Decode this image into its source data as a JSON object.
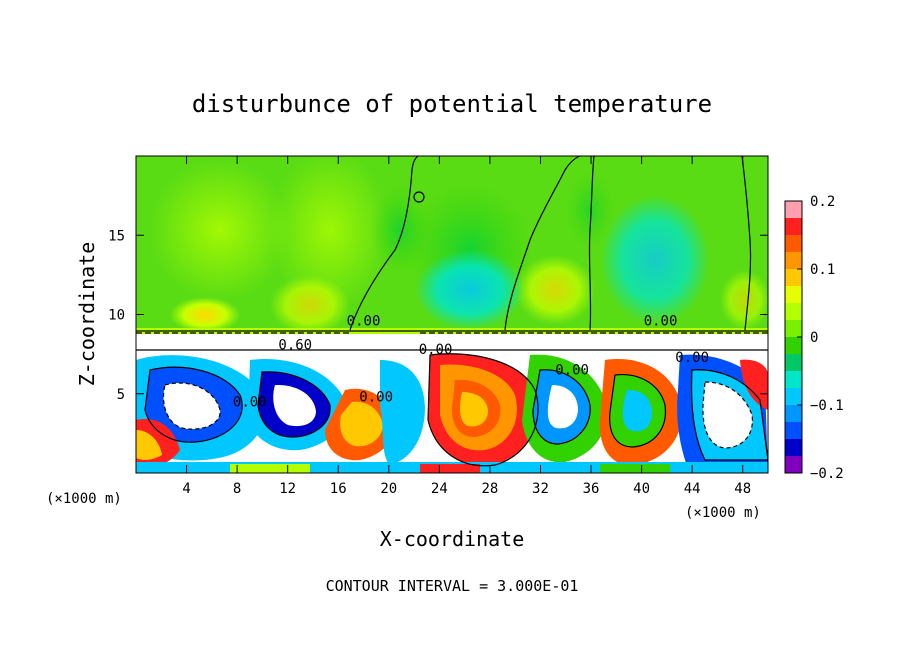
{
  "chart_data": {
    "type": "heatmap",
    "title": "disturbunce of potential temperature",
    "xlabel": "X-coordinate",
    "ylabel": "Z-coordinate",
    "x_unit_label": "(×1000 m)",
    "x_unit_label_right": "(×1000 m)",
    "xlim": [
      0,
      50
    ],
    "ylim": [
      0,
      20
    ],
    "x_ticks": [
      4,
      8,
      12,
      16,
      20,
      24,
      28,
      32,
      36,
      40,
      44,
      48
    ],
    "y_ticks": [
      5,
      10,
      15
    ],
    "colorbar": {
      "range": [
        -0.2,
        0.2
      ],
      "ticks": [
        0.2,
        0.1,
        0,
        -0.1,
        -0.2
      ],
      "tick_labels": [
        "0.2",
        "0.1",
        "0",
        "−0.1",
        "−0.2"
      ],
      "colors": [
        "#ff9fb0",
        "#ff2020",
        "#ff5a00",
        "#ff9600",
        "#ffc800",
        "#e6ff00",
        "#b4ff00",
        "#78f000",
        "#32d200",
        "#00c864",
        "#00e6c8",
        "#00c8ff",
        "#0096ff",
        "#0050ff",
        "#0000c8",
        "#8000c0"
      ]
    },
    "contour_labels": [
      {
        "text": "0.00",
        "x": 18.0,
        "y": 9.3
      },
      {
        "text": "0.60",
        "x": 12.6,
        "y": 7.8
      },
      {
        "text": "0.00",
        "x": 23.7,
        "y": 7.5
      },
      {
        "text": "0.00",
        "x": 41.5,
        "y": 9.3
      },
      {
        "text": "0.00",
        "x": 44.0,
        "y": 7.0
      },
      {
        "text": "0.00",
        "x": 19.0,
        "y": 4.5
      },
      {
        "text": "0.00",
        "x": 9.0,
        "y": 4.2
      },
      {
        "text": "0.00",
        "x": 34.5,
        "y": 6.2
      }
    ],
    "annotation": "CONTOUR INTERVAL = 3.000E-01"
  }
}
